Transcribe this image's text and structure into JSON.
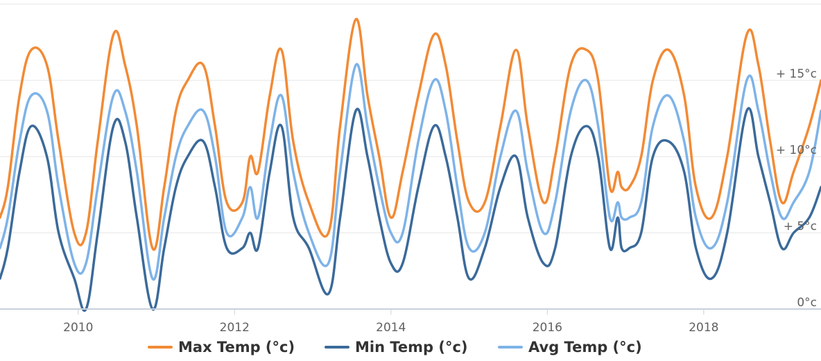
{
  "chart_data": {
    "type": "line",
    "title": "",
    "xlabel": "",
    "ylabel": "",
    "x_ticks": [
      "2010",
      "2012",
      "2014",
      "2016",
      "2018"
    ],
    "y_ticks": [
      "0°c",
      "+ 5°c",
      "+ 10°c",
      "+ 15°c"
    ],
    "y_tick_values": [
      0,
      5,
      10,
      15
    ],
    "xlim": [
      2009.0,
      2019.5
    ],
    "ylim": [
      0,
      20
    ],
    "grid": true,
    "legend_position": "bottom",
    "series": [
      {
        "name": "Max Temp (°c)",
        "color": "#f28a35",
        "x": [
          2009.0,
          2009.1,
          2009.25,
          2009.4,
          2009.6,
          2009.75,
          2009.95,
          2010.1,
          2010.25,
          2010.45,
          2010.6,
          2010.75,
          2010.95,
          2011.1,
          2011.25,
          2011.4,
          2011.6,
          2011.75,
          2011.9,
          2012.1,
          2012.2,
          2012.3,
          2012.45,
          2012.6,
          2012.75,
          2012.95,
          2013.2,
          2013.35,
          2013.55,
          2013.7,
          2013.85,
          2014.0,
          2014.15,
          2014.35,
          2014.55,
          2014.7,
          2014.85,
          2015.0,
          2015.2,
          2015.4,
          2015.6,
          2015.75,
          2015.95,
          2016.1,
          2016.3,
          2016.5,
          2016.65,
          2016.8,
          2016.9,
          2016.95,
          2017.05,
          2017.2,
          2017.35,
          2017.55,
          2017.75,
          2017.9,
          2018.1,
          2018.3,
          2018.55,
          2018.7,
          2018.85,
          2019.0,
          2019.15,
          2019.35,
          2019.5
        ],
        "values": [
          6,
          8,
          14,
          17,
          16,
          11,
          5,
          5,
          11,
          18,
          16,
          12,
          4,
          8,
          13,
          15,
          16,
          12,
          7,
          7,
          10,
          9,
          14,
          17,
          11,
          7,
          5,
          12,
          19,
          14,
          10,
          6,
          9,
          14,
          18,
          16,
          11,
          7,
          7,
          12,
          17,
          12,
          7,
          10,
          16,
          17,
          15,
          8,
          9,
          8,
          8,
          10,
          15,
          17,
          14,
          8,
          6,
          10,
          18,
          16,
          11,
          7,
          9,
          12,
          15
        ]
      },
      {
        "name": "Min Temp (°c)",
        "color": "#3b6a9a",
        "x": [
          2009.0,
          2009.1,
          2009.25,
          2009.4,
          2009.6,
          2009.75,
          2009.95,
          2010.1,
          2010.25,
          2010.45,
          2010.6,
          2010.75,
          2010.95,
          2011.1,
          2011.25,
          2011.4,
          2011.6,
          2011.75,
          2011.9,
          2012.1,
          2012.2,
          2012.3,
          2012.45,
          2012.6,
          2012.75,
          2012.95,
          2013.2,
          2013.35,
          2013.55,
          2013.7,
          2013.85,
          2014.0,
          2014.15,
          2014.35,
          2014.55,
          2014.7,
          2014.85,
          2015.0,
          2015.2,
          2015.4,
          2015.6,
          2015.75,
          2015.95,
          2016.1,
          2016.3,
          2016.5,
          2016.65,
          2016.8,
          2016.9,
          2016.95,
          2017.05,
          2017.2,
          2017.35,
          2017.55,
          2017.75,
          2017.9,
          2018.1,
          2018.3,
          2018.55,
          2018.7,
          2018.85,
          2019.0,
          2019.15,
          2019.35,
          2019.5
        ],
        "values": [
          2,
          4,
          9,
          12,
          10,
          5,
          2,
          0,
          5,
          12,
          11,
          6,
          0,
          4,
          8,
          10,
          11,
          8,
          4,
          4,
          5,
          4,
          9,
          12,
          6,
          4,
          1,
          6,
          13,
          10,
          6,
          3,
          3,
          8,
          12,
          10,
          6,
          2,
          4,
          8,
          10,
          6,
          3,
          4,
          10,
          12,
          10,
          4,
          6,
          4,
          4,
          5,
          10,
          11,
          9,
          4,
          2,
          5,
          13,
          10,
          7,
          4,
          5,
          6,
          8
        ]
      },
      {
        "name": "Avg Temp (°c)",
        "color": "#7eb3e8",
        "x": [
          2009.0,
          2009.1,
          2009.25,
          2009.4,
          2009.6,
          2009.75,
          2009.95,
          2010.1,
          2010.25,
          2010.45,
          2010.6,
          2010.75,
          2010.95,
          2011.1,
          2011.25,
          2011.4,
          2011.6,
          2011.75,
          2011.9,
          2012.1,
          2012.2,
          2012.3,
          2012.45,
          2012.6,
          2012.75,
          2012.95,
          2013.2,
          2013.35,
          2013.55,
          2013.7,
          2013.85,
          2014.0,
          2014.15,
          2014.35,
          2014.55,
          2014.7,
          2014.85,
          2015.0,
          2015.2,
          2015.4,
          2015.6,
          2015.75,
          2015.95,
          2016.1,
          2016.3,
          2016.5,
          2016.65,
          2016.8,
          2016.9,
          2016.95,
          2017.05,
          2017.2,
          2017.35,
          2017.55,
          2017.75,
          2017.9,
          2018.1,
          2018.3,
          2018.55,
          2018.7,
          2018.85,
          2019.0,
          2019.15,
          2019.35,
          2019.5
        ],
        "values": [
          4,
          6,
          11,
          14,
          13,
          8,
          3,
          3,
          8,
          14,
          13,
          9,
          2,
          6,
          10,
          12,
          13,
          10,
          5,
          6,
          8,
          6,
          11,
          14,
          9,
          5,
          3,
          9,
          16,
          12,
          8,
          5,
          5,
          11,
          15,
          13,
          8,
          4,
          5,
          10,
          13,
          9,
          5,
          7,
          13,
          15,
          12,
          6,
          7,
          6,
          6,
          7,
          12,
          14,
          11,
          6,
          4,
          7,
          15,
          13,
          9,
          6,
          7,
          9,
          13
        ]
      }
    ]
  }
}
